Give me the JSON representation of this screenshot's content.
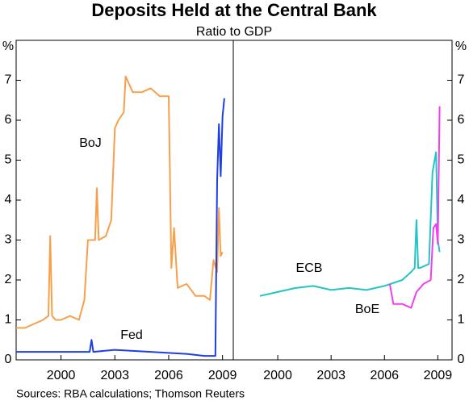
{
  "title": "Deposits Held at the Central Bank",
  "subtitle": "Ratio to GDP",
  "source": "Sources: RBA calculations; Thomson Reuters",
  "chart_data": [
    {
      "type": "line",
      "y_label": "%",
      "xlim": [
        1997.5,
        2009.6
      ],
      "xticks": [
        2000,
        2003,
        2006,
        2009
      ],
      "ylim": [
        0,
        8
      ],
      "yticks": [
        0,
        1,
        2,
        3,
        4,
        5,
        6,
        7
      ],
      "series": [
        {
          "name": "BoJ",
          "color": "#f7a04b",
          "x": [
            1997.5,
            1998,
            1998.5,
            1999,
            1999.3,
            1999.4,
            1999.5,
            1999.7,
            2000,
            2000.5,
            2001,
            2001.3,
            2001.5,
            2001.9,
            2002,
            2002.1,
            2002.5,
            2002.8,
            2003,
            2003.2,
            2003.5,
            2003.6,
            2004,
            2004.5,
            2005,
            2005.5,
            2006,
            2006.15,
            2006.3,
            2006.5,
            2007,
            2007.5,
            2008,
            2008.3,
            2008.5,
            2008.7,
            2008.8,
            2008.9,
            2009
          ],
          "values": [
            0.8,
            0.8,
            0.9,
            1.0,
            1.1,
            3.1,
            1.1,
            1.0,
            1.0,
            1.1,
            1.0,
            1.5,
            3.0,
            3.0,
            4.3,
            3.0,
            3.1,
            3.5,
            5.8,
            6.0,
            6.2,
            7.1,
            6.7,
            6.7,
            6.8,
            6.6,
            6.6,
            2.3,
            3.3,
            1.8,
            1.9,
            1.6,
            1.6,
            1.5,
            2.5,
            2.2,
            3.8,
            2.6,
            2.7
          ]
        },
        {
          "name": "Fed",
          "color": "#1f3fe0",
          "x": [
            1997.5,
            1999,
            2000,
            2001,
            2001.6,
            2001.7,
            2001.8,
            2003,
            2005,
            2007,
            2008,
            2008.6,
            2008.7,
            2008.8,
            2008.9,
            2009,
            2009.1
          ],
          "values": [
            0.2,
            0.2,
            0.2,
            0.2,
            0.2,
            0.5,
            0.2,
            0.25,
            0.2,
            0.15,
            0.1,
            0.1,
            4.5,
            5.9,
            4.6,
            6.1,
            6.55
          ]
        }
      ]
    },
    {
      "type": "line",
      "y_label": "%",
      "xlim": [
        1997.5,
        2009.8
      ],
      "xticks": [
        2000,
        2003,
        2006,
        2009
      ],
      "ylim": [
        0,
        8
      ],
      "yticks": [
        0,
        1,
        2,
        3,
        4,
        5,
        6,
        7
      ],
      "series": [
        {
          "name": "ECB",
          "color": "#22c5c5",
          "x": [
            1999,
            2000,
            2001,
            2002,
            2003,
            2004,
            2005,
            2006,
            2007,
            2007.5,
            2007.7,
            2007.8,
            2007.9,
            2008,
            2008.5,
            2008.7,
            2008.9,
            2009,
            2009.1
          ],
          "values": [
            1.6,
            1.7,
            1.8,
            1.85,
            1.75,
            1.8,
            1.75,
            1.85,
            2.0,
            2.2,
            2.3,
            3.5,
            2.3,
            2.3,
            2.4,
            4.7,
            5.2,
            3.0,
            2.7
          ]
        },
        {
          "name": "BoE",
          "color": "#f03ef0",
          "x": [
            2006.3,
            2006.5,
            2007,
            2007.5,
            2007.8,
            2008.2,
            2008.6,
            2008.75,
            2008.9,
            2009,
            2009.1
          ],
          "values": [
            1.9,
            1.4,
            1.4,
            1.3,
            1.7,
            1.9,
            2.0,
            3.3,
            3.4,
            2.9,
            6.35
          ]
        }
      ]
    }
  ]
}
